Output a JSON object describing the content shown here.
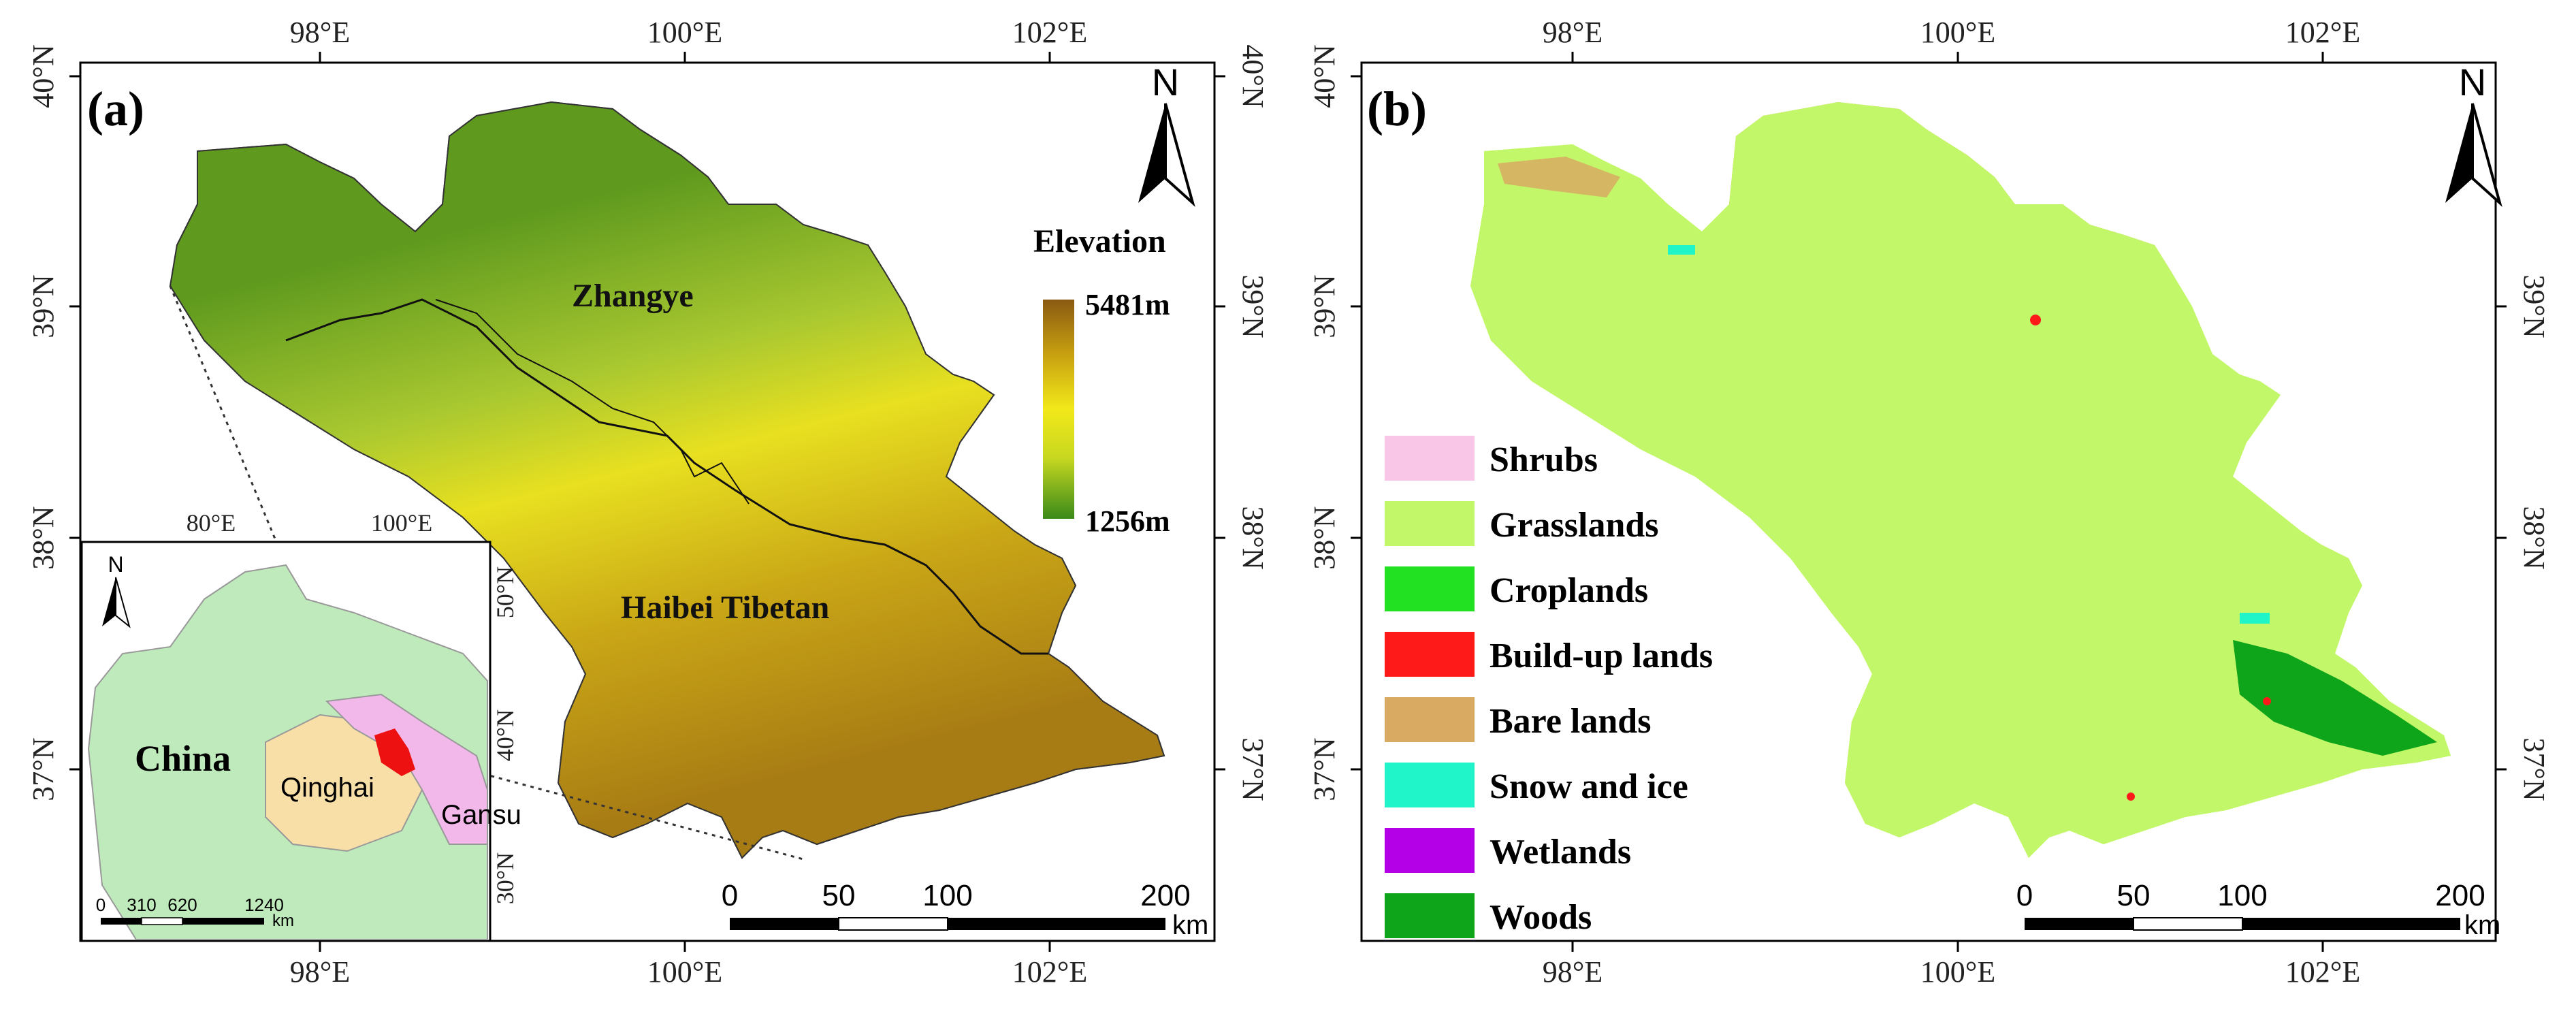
{
  "panel_a": {
    "label": "(a)",
    "x_ticks": [
      "98°E",
      "100°E",
      "102°E"
    ],
    "y_ticks_left": [
      "40°N",
      "39°N",
      "38°N",
      "37°N"
    ],
    "y_ticks_right": [
      "40°N",
      "39°N",
      "38°N",
      "37°N"
    ],
    "north_label": "N",
    "legend_title": "Elevation",
    "elevation_max": "5481m",
    "elevation_min": "1256m",
    "elevation_colors": [
      "#8a5a12",
      "#c8a010",
      "#f2e81a",
      "#c8d820",
      "#3a8a1a"
    ],
    "region_labels": [
      "Zhangye",
      "Haibei Tibetan"
    ],
    "scale_ticks": [
      "0",
      "50",
      "100",
      "200"
    ],
    "scale_unit": "km"
  },
  "inset": {
    "x_ticks": [
      "80°E",
      "100°E"
    ],
    "y_ticks": [
      "50°N",
      "40°N",
      "30°N"
    ],
    "north_label": "N",
    "labels": [
      "China",
      "Qinghai",
      "Gansu"
    ],
    "scale_ticks": [
      "0",
      "310",
      "620",
      "1240"
    ],
    "scale_unit": "km",
    "colors": {
      "china": "#bfeabb",
      "qinghai": "#f8dfa8",
      "gansu": "#f2b8ea",
      "study_area": "#ee1111"
    }
  },
  "panel_b": {
    "label": "(b)",
    "x_ticks": [
      "98°E",
      "100°E",
      "102°E"
    ],
    "y_ticks_left": [
      "40°N",
      "39°N",
      "38°N",
      "37°N"
    ],
    "y_ticks_right": [
      "39°N",
      "38°N",
      "37°N"
    ],
    "north_label": "N",
    "legend": [
      {
        "label": "Shrubs",
        "color": "#f9c6e8"
      },
      {
        "label": "Grasslands",
        "color": "#c3f76a"
      },
      {
        "label": "Croplands",
        "color": "#22e022"
      },
      {
        "label": "Build-up lands",
        "color": "#ff1a1a"
      },
      {
        "label": "Bare lands",
        "color": "#d8aa62"
      },
      {
        "label": "Snow and ice",
        "color": "#1ff5c8"
      },
      {
        "label": "Wetlands",
        "color": "#b400e6"
      },
      {
        "label": "Woods",
        "color": "#0ea51a"
      }
    ],
    "scale_ticks": [
      "0",
      "50",
      "100",
      "200"
    ],
    "scale_unit": "km"
  }
}
